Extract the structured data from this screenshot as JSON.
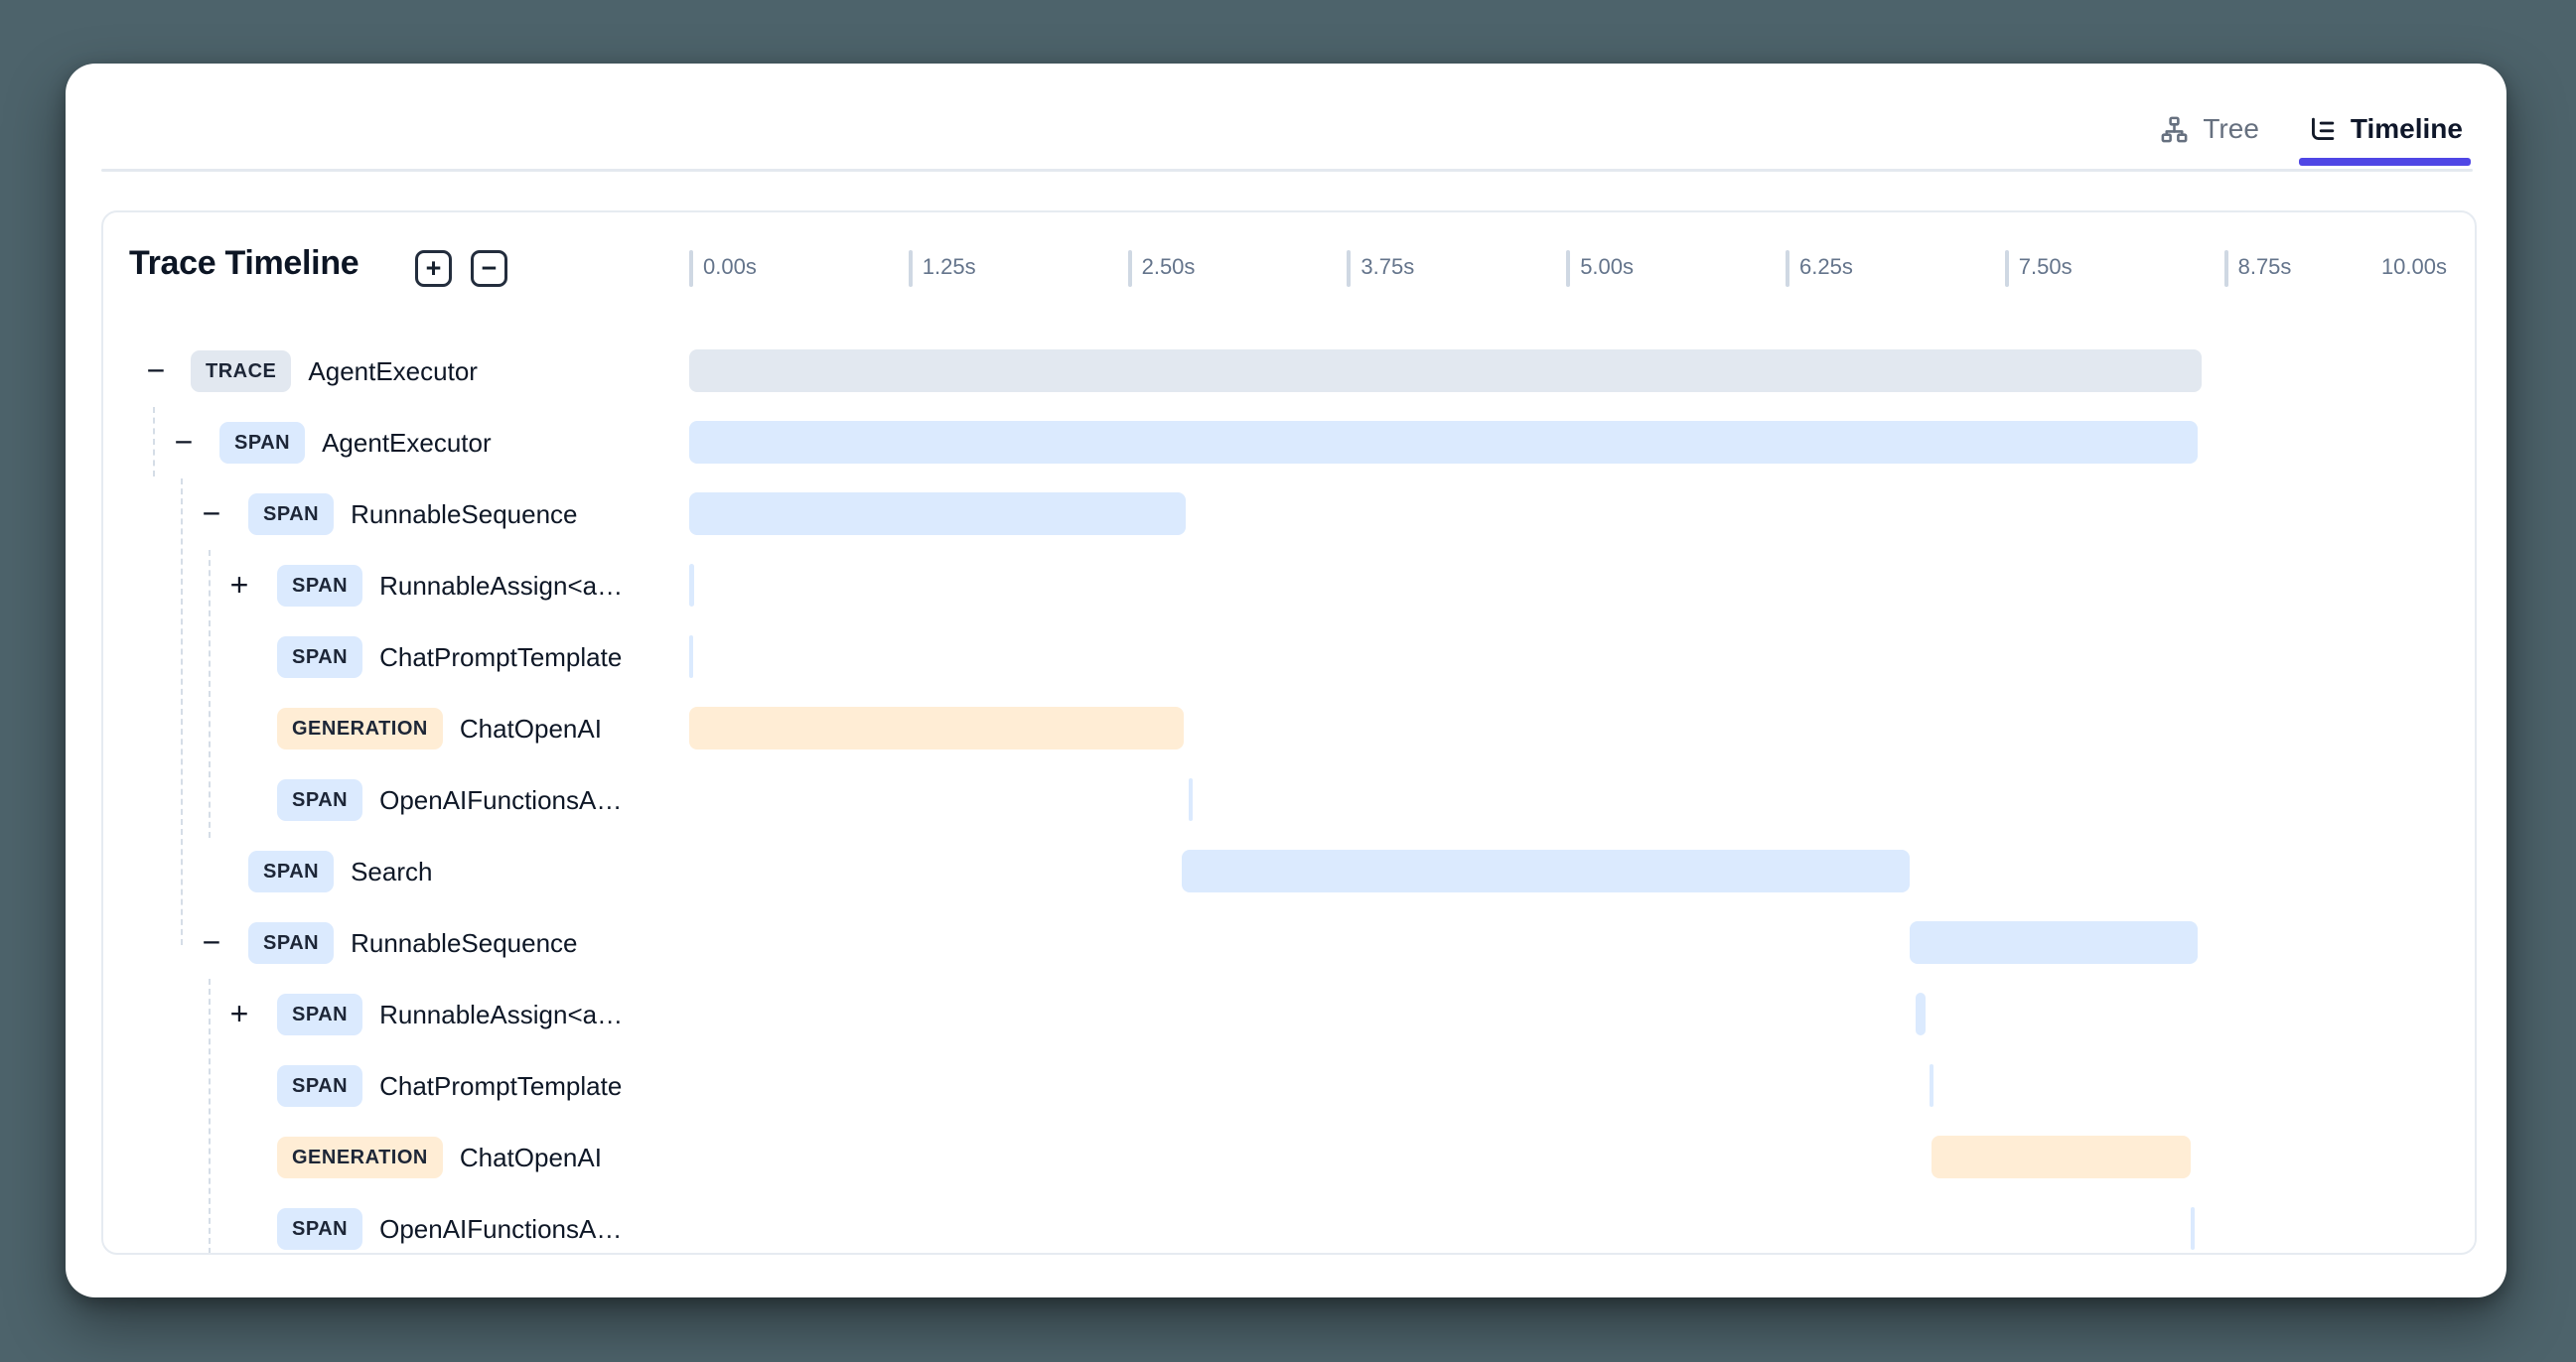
{
  "tabs": {
    "tree_label": "Tree",
    "timeline_label": "Timeline",
    "active": "Timeline"
  },
  "panel": {
    "title": "Trace Timeline",
    "expand_all_label": "+",
    "collapse_all_label": "−"
  },
  "axis": {
    "unit": "seconds",
    "ticks": [
      {
        "label": "0.00s",
        "s": 0
      },
      {
        "label": "1.25s",
        "s": 1.25
      },
      {
        "label": "2.50s",
        "s": 2.5
      },
      {
        "label": "3.75s",
        "s": 3.75
      },
      {
        "label": "5.00s",
        "s": 5
      },
      {
        "label": "6.25s",
        "s": 6.25
      },
      {
        "label": "7.50s",
        "s": 7.5
      },
      {
        "label": "8.75s",
        "s": 8.75
      }
    ],
    "end_label": {
      "label": "10.00s",
      "s": 10
    },
    "range_s": [
      0,
      10
    ]
  },
  "rows": [
    {
      "badge": "TRACE",
      "type": "trace",
      "label": "AgentExecutor",
      "level": 0,
      "toggle": "minus",
      "bar": {
        "start_s": 0.0,
        "end_s": 8.62,
        "kind": "trace"
      }
    },
    {
      "badge": "SPAN",
      "type": "span",
      "label": "AgentExecutor",
      "level": 1,
      "toggle": "minus",
      "bar": {
        "start_s": 0.0,
        "end_s": 8.6,
        "kind": "span"
      }
    },
    {
      "badge": "SPAN",
      "type": "span",
      "label": "RunnableSequence",
      "level": 2,
      "toggle": "minus",
      "bar": {
        "start_s": 0.0,
        "end_s": 2.83,
        "kind": "span"
      }
    },
    {
      "badge": "SPAN",
      "type": "span",
      "label": "RunnableAssign<a…",
      "level": 3,
      "toggle": "plus",
      "bar": {
        "start_s": 0.0,
        "end_s": 0.03,
        "kind": "span"
      }
    },
    {
      "badge": "SPAN",
      "type": "span",
      "label": "ChatPromptTemplate",
      "level": 3,
      "toggle": null,
      "bar": {
        "start_s": 0.0,
        "end_s": 0.02,
        "kind": "span"
      }
    },
    {
      "badge": "GENERATION",
      "type": "generation",
      "label": "ChatOpenAI",
      "level": 3,
      "toggle": null,
      "bar": {
        "start_s": 0.0,
        "end_s": 2.82,
        "kind": "generation"
      }
    },
    {
      "badge": "SPAN",
      "type": "span",
      "label": "OpenAIFunctionsA…",
      "level": 3,
      "toggle": null,
      "bar": {
        "start_s": 2.85,
        "end_s": 2.87,
        "kind": "span"
      }
    },
    {
      "badge": "SPAN",
      "type": "span",
      "label": "Search",
      "level": 2,
      "toggle": null,
      "bar": {
        "start_s": 2.81,
        "end_s": 6.96,
        "kind": "span"
      }
    },
    {
      "badge": "SPAN",
      "type": "span",
      "label": "RunnableSequence",
      "level": 2,
      "toggle": "minus",
      "bar": {
        "start_s": 6.96,
        "end_s": 8.6,
        "kind": "span"
      }
    },
    {
      "badge": "SPAN",
      "type": "span",
      "label": "RunnableAssign<a…",
      "level": 3,
      "toggle": "plus",
      "bar": {
        "start_s": 6.99,
        "end_s": 7.05,
        "kind": "span"
      }
    },
    {
      "badge": "SPAN",
      "type": "span",
      "label": "ChatPromptTemplate",
      "level": 3,
      "toggle": null,
      "bar": {
        "start_s": 7.07,
        "end_s": 7.08,
        "kind": "span"
      }
    },
    {
      "badge": "GENERATION",
      "type": "generation",
      "label": "ChatOpenAI",
      "level": 3,
      "toggle": null,
      "bar": {
        "start_s": 7.08,
        "end_s": 8.56,
        "kind": "generation"
      }
    },
    {
      "badge": "SPAN",
      "type": "span",
      "label": "OpenAIFunctionsA…",
      "level": 3,
      "toggle": null,
      "bar": {
        "start_s": 8.56,
        "end_s": 8.58,
        "kind": "span"
      }
    }
  ],
  "colors": {
    "accent": "#4f46e5",
    "trace": "#e2e8f0",
    "span": "#dbeafe",
    "generation": "#ffedd5",
    "page_background": "#4d636b"
  }
}
